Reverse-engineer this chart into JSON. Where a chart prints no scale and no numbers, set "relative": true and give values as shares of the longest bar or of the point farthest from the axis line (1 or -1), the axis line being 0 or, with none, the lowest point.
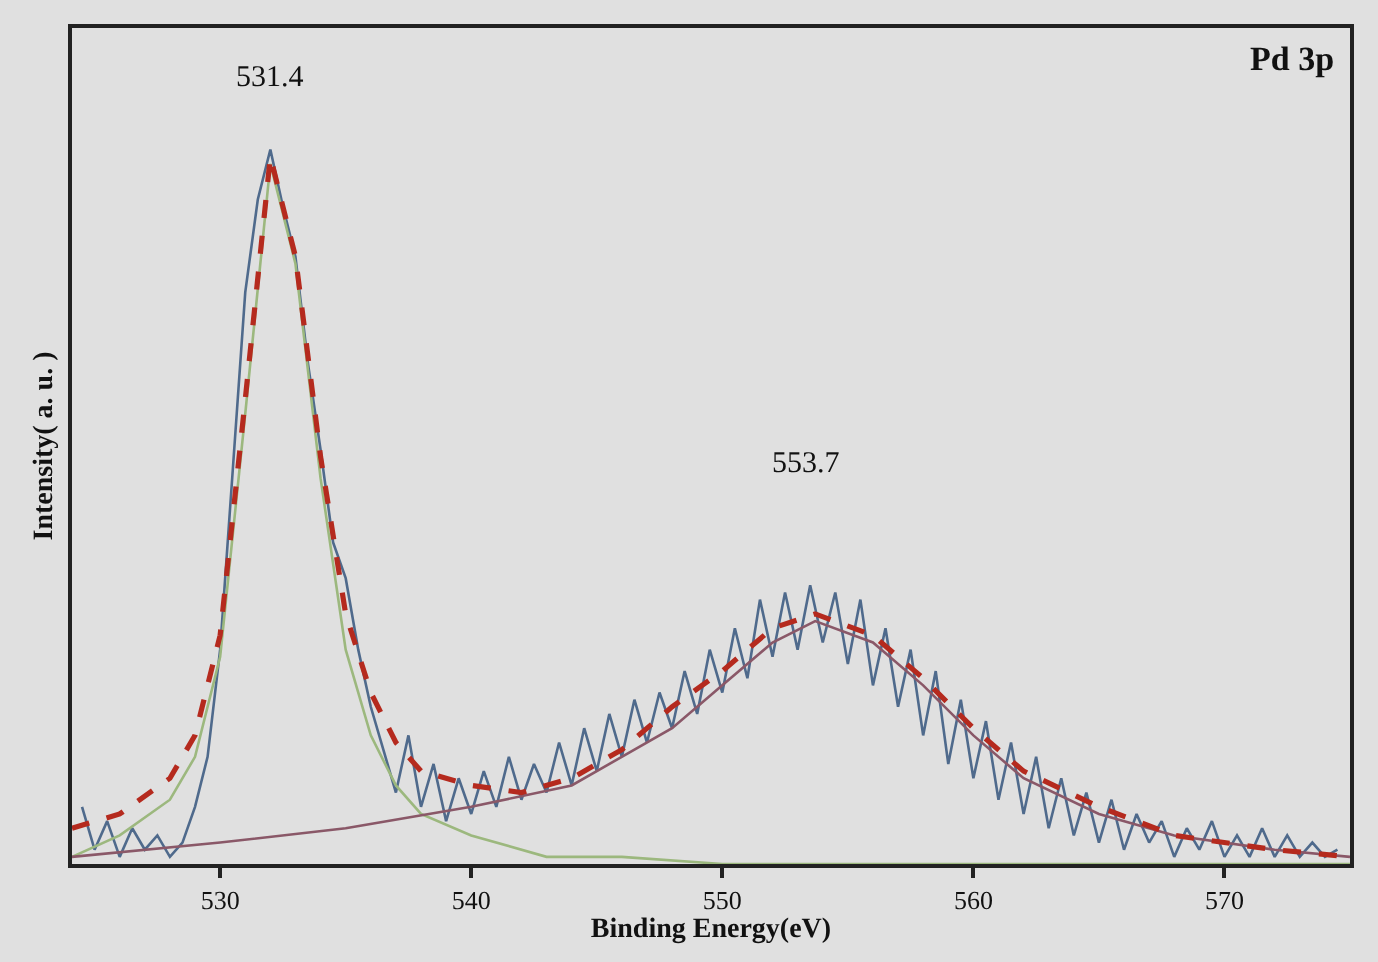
{
  "chart_data": {
    "type": "line",
    "relative": true,
    "xlabel": "Binding Energy(eV)",
    "ylabel": "Intensity( a. u. )",
    "xlim": [
      524.1,
      575
    ],
    "xticks": [
      530,
      540,
      550,
      560,
      570
    ],
    "tick_labels": "x",
    "grid": false,
    "marker": "none",
    "annotations": [
      "Pd 3p",
      "531.4",
      "553.7"
    ],
    "series": [
      {
        "color": "#4f6a8c",
        "line_style": "solid",
        "x": [
          524.5,
          525,
          525.5,
          526,
          526.5,
          527,
          527.5,
          528,
          528.5,
          529,
          529.5,
          530,
          530.5,
          531,
          531.5,
          532,
          532.5,
          533,
          533.5,
          534,
          534.5,
          535,
          535.5,
          536,
          536.5,
          537,
          537.5,
          538,
          538.5,
          539,
          539.5,
          540,
          540.5,
          541,
          541.5,
          542,
          542.5,
          543,
          543.5,
          544,
          544.5,
          545,
          545.5,
          546,
          546.5,
          547,
          547.5,
          548,
          548.5,
          549,
          549.5,
          550,
          550.5,
          551,
          551.5,
          552,
          552.5,
          553,
          553.5,
          554,
          554.5,
          555,
          555.5,
          556,
          556.5,
          557,
          557.5,
          558,
          558.5,
          559,
          559.5,
          560,
          560.5,
          561,
          561.5,
          562,
          562.5,
          563,
          563.5,
          564,
          564.5,
          565,
          565.5,
          566,
          566.5,
          567,
          567.5,
          568,
          568.5,
          569,
          569.5,
          570,
          570.5,
          571,
          571.5,
          572,
          572.5,
          573,
          573.5,
          574,
          574.5
        ],
        "values": [
          0.08,
          0.02,
          0.06,
          0.01,
          0.05,
          0.02,
          0.04,
          0.01,
          0.03,
          0.08,
          0.15,
          0.3,
          0.55,
          0.8,
          0.93,
          1.0,
          0.92,
          0.85,
          0.7,
          0.58,
          0.45,
          0.4,
          0.3,
          0.22,
          0.16,
          0.1,
          0.18,
          0.08,
          0.14,
          0.06,
          0.12,
          0.07,
          0.13,
          0.08,
          0.15,
          0.09,
          0.14,
          0.1,
          0.17,
          0.11,
          0.19,
          0.13,
          0.21,
          0.15,
          0.23,
          0.17,
          0.24,
          0.19,
          0.27,
          0.21,
          0.3,
          0.24,
          0.33,
          0.26,
          0.37,
          0.29,
          0.38,
          0.3,
          0.39,
          0.31,
          0.38,
          0.28,
          0.37,
          0.25,
          0.33,
          0.22,
          0.3,
          0.18,
          0.27,
          0.14,
          0.23,
          0.12,
          0.2,
          0.09,
          0.17,
          0.07,
          0.15,
          0.05,
          0.12,
          0.04,
          0.1,
          0.03,
          0.09,
          0.02,
          0.07,
          0.03,
          0.06,
          0.01,
          0.05,
          0.02,
          0.06,
          0.01,
          0.04,
          0.01,
          0.05,
          0.01,
          0.04,
          0.01,
          0.03,
          0.01,
          0.02
        ]
      },
      {
        "color": "#9cb87e",
        "line_style": "solid",
        "x": [
          524.1,
          526,
          528,
          529,
          530,
          531,
          532,
          533,
          534,
          535,
          536,
          537,
          538,
          540,
          543,
          546,
          550,
          555,
          575
        ],
        "values": [
          0.01,
          0.04,
          0.09,
          0.15,
          0.29,
          0.63,
          0.98,
          0.84,
          0.54,
          0.3,
          0.18,
          0.11,
          0.07,
          0.04,
          0.01,
          0.01,
          0,
          0,
          0
        ]
      },
      {
        "color": "#8a5868",
        "line_style": "solid",
        "x": [
          524.1,
          530,
          535,
          540,
          544,
          548,
          550,
          552,
          553.7,
          556,
          558,
          560,
          562,
          565,
          568,
          572,
          575
        ],
        "values": [
          0.01,
          0.03,
          0.05,
          0.08,
          0.11,
          0.19,
          0.25,
          0.31,
          0.34,
          0.31,
          0.25,
          0.18,
          0.12,
          0.07,
          0.04,
          0.02,
          0.01
        ]
      },
      {
        "color": "#b52a1e",
        "line_style": "dashed",
        "x": [
          524.1,
          526,
          528,
          529,
          530,
          531,
          532,
          533,
          534,
          535,
          536,
          537,
          538,
          540,
          542,
          544,
          546,
          548,
          550,
          552,
          553.7,
          556,
          558,
          560,
          562,
          565,
          568,
          572,
          575
        ],
        "values": [
          0.05,
          0.07,
          0.12,
          0.18,
          0.32,
          0.65,
          0.99,
          0.85,
          0.57,
          0.35,
          0.24,
          0.17,
          0.13,
          0.11,
          0.1,
          0.12,
          0.16,
          0.22,
          0.27,
          0.33,
          0.35,
          0.32,
          0.26,
          0.19,
          0.13,
          0.08,
          0.04,
          0.02,
          0.01
        ]
      }
    ]
  }
}
